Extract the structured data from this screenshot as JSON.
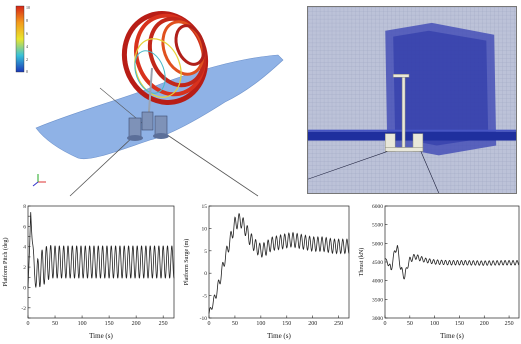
{
  "colorbar": {
    "ticks": [
      "10",
      "8",
      "6",
      "4",
      "2",
      "0"
    ]
  },
  "colors": {
    "ocean": "#8fb2e6",
    "vortex": "#c8261c",
    "line": "#222222",
    "mesh_band": "#1f2f9e",
    "mesh_bg": "#b9bfd6"
  },
  "chart_data": [
    {
      "type": "line",
      "xlabel": "Time (s)",
      "ylabel": "Platform Pitch (deg)",
      "xlim": [
        0,
        270
      ],
      "ylim": [
        -3,
        8
      ],
      "xticks": [
        0,
        50,
        100,
        150,
        200,
        250
      ],
      "yticks": [
        -3,
        -2,
        -1,
        0,
        1,
        2,
        3,
        4,
        5,
        6,
        7,
        8
      ],
      "ytick_labels": [
        "",
        "-2",
        "",
        "0",
        "",
        "2",
        "",
        "4",
        "",
        "6",
        "",
        "8"
      ],
      "period_s": 8.0,
      "x": [
        0,
        3,
        5,
        8,
        12,
        16,
        20,
        24,
        28,
        32,
        36,
        40,
        44,
        48,
        52,
        56,
        60,
        64,
        68,
        72,
        76,
        80,
        90,
        100,
        120,
        150,
        180,
        210,
        240,
        270
      ],
      "y_center": [
        0,
        4,
        7.4,
        4.5,
        1.5,
        1.0,
        1.5,
        1.9,
        2.0,
        2.2,
        2.4,
        2.5,
        2.5,
        2.5,
        2.5,
        2.5,
        2.5,
        2.5,
        2.5,
        2.5,
        2.5,
        2.5,
        2.5,
        2.5,
        2.5,
        2.5,
        2.5,
        2.5,
        2.5,
        2.5
      ],
      "y_amplitude": [
        0,
        0,
        0,
        0.5,
        0.8,
        1.5,
        1.6,
        1.7,
        1.8,
        1.8,
        1.7,
        1.7,
        1.6,
        1.6,
        1.6,
        1.6,
        1.6,
        1.6,
        1.6,
        1.6,
        1.6,
        1.6,
        1.6,
        1.6,
        1.6,
        1.6,
        1.6,
        1.6,
        1.6,
        1.6
      ]
    },
    {
      "type": "line",
      "xlabel": "Time (s)",
      "ylabel": "Platform Surge (m)",
      "xlim": [
        0,
        270
      ],
      "ylim": [
        -10,
        15
      ],
      "xticks": [
        0,
        50,
        100,
        150,
        200,
        250
      ],
      "yticks": [
        -10,
        -5,
        0,
        5,
        10,
        15
      ],
      "ytick_labels": [
        "-10",
        "-5",
        "0",
        "5",
        "10",
        "15"
      ],
      "period_s": 8.0,
      "x": [
        0,
        10,
        20,
        30,
        40,
        50,
        60,
        70,
        80,
        90,
        100,
        110,
        120,
        140,
        160,
        180,
        200,
        220,
        240,
        270
      ],
      "y_center": [
        -9,
        -6,
        -2,
        3,
        7,
        11,
        12,
        10,
        7.5,
        6,
        5,
        5.5,
        6.5,
        7,
        7.5,
        7,
        6.5,
        6.5,
        6,
        6
      ],
      "y_amplitude": [
        0.5,
        1,
        1.2,
        1.3,
        1.4,
        1.5,
        1.5,
        1.6,
        1.6,
        1.5,
        1.5,
        1.5,
        1.5,
        1.6,
        1.6,
        1.6,
        1.6,
        1.6,
        1.6,
        1.6
      ]
    },
    {
      "type": "line",
      "xlabel": "Time (s)",
      "ylabel": "Thrust (kN)",
      "xlim": [
        0,
        270
      ],
      "ylim": [
        3000,
        6000
      ],
      "xticks": [
        0,
        50,
        100,
        150,
        200,
        250
      ],
      "yticks": [
        3000,
        3500,
        4000,
        4500,
        5000,
        5500,
        6000
      ],
      "ytick_labels": [
        "3000",
        "3500",
        "4000",
        "4500",
        "5000",
        "5500",
        "6000"
      ],
      "period_s": 8.0,
      "x": [
        0,
        5,
        12,
        20,
        25,
        32,
        40,
        45,
        50,
        60,
        70,
        80,
        100,
        130,
        160,
        200,
        240,
        270
      ],
      "y_center": [
        4600,
        4500,
        4300,
        4800,
        4900,
        4300,
        4100,
        4400,
        4550,
        4650,
        4600,
        4550,
        4500,
        4480,
        4480,
        4470,
        4480,
        4480
      ],
      "y_amplitude": [
        0,
        50,
        100,
        80,
        70,
        100,
        100,
        90,
        80,
        70,
        70,
        60,
        60,
        60,
        60,
        60,
        60,
        60
      ]
    }
  ]
}
